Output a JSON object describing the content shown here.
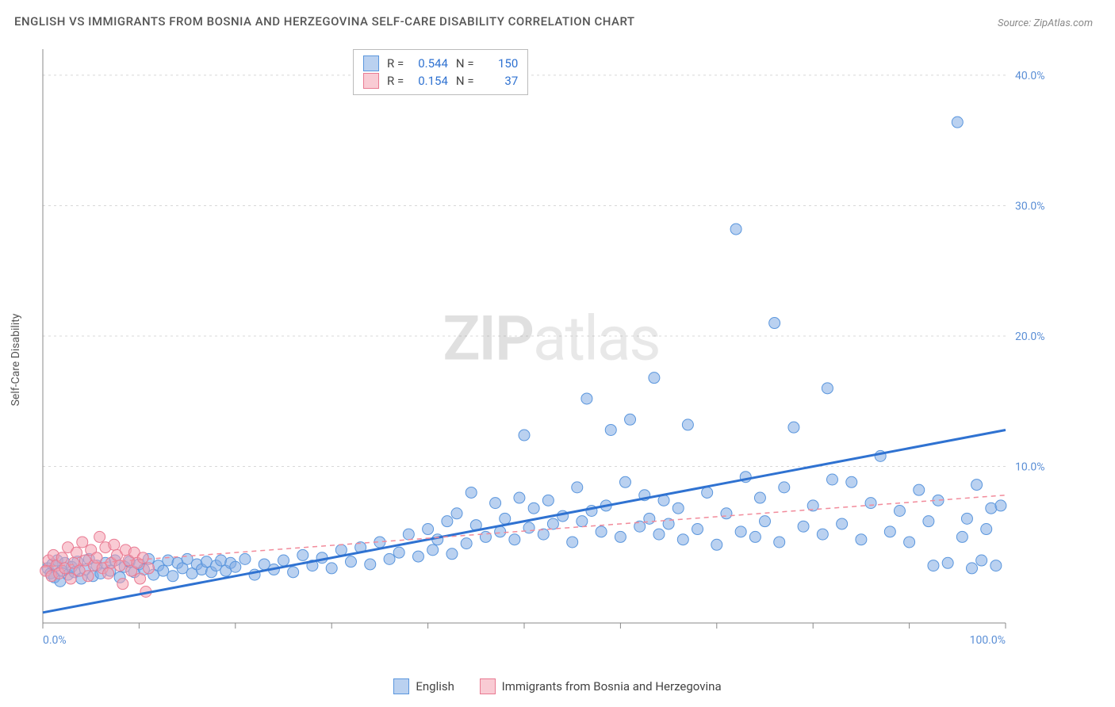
{
  "title": "ENGLISH VS IMMIGRANTS FROM BOSNIA AND HERZEGOVINA SELF-CARE DISABILITY CORRELATION CHART",
  "source_label": "Source:",
  "source_value": "ZipAtlas.com",
  "ylabel": "Self-Care Disability",
  "watermark_bold": "ZIP",
  "watermark_light": "atlas",
  "chart": {
    "type": "scatter",
    "xlim": [
      0,
      100
    ],
    "ylim": [
      -2,
      42
    ],
    "x_ticks": [
      0,
      10,
      20,
      30,
      40,
      50,
      60,
      70,
      80,
      90,
      100
    ],
    "x_tick_labels": {
      "0": "0.0%",
      "100": "100.0%"
    },
    "y_ticks": [
      10,
      20,
      30,
      40
    ],
    "y_tick_labels": {
      "10": "10.0%",
      "20": "20.0%",
      "30": "30.0%",
      "40": "40.0%"
    },
    "background_color": "#ffffff",
    "grid_color": "#d8d8d8",
    "axis_color": "#888888",
    "tick_label_color": "#5b8fd6",
    "marker_radius": 7,
    "series": [
      {
        "name": "English",
        "color_fill": "rgba(130,172,228,0.55)",
        "color_stroke": "#5a96dd",
        "R": "0.544",
        "N": "150",
        "trend": {
          "x1": 0,
          "y1": -1.2,
          "x2": 100,
          "y2": 12.8,
          "color": "#2f72d1",
          "width": 3,
          "dash": "none"
        },
        "points": [
          [
            0.5,
            2.2
          ],
          [
            0.8,
            1.8
          ],
          [
            1.0,
            2.5
          ],
          [
            1.2,
            1.5
          ],
          [
            1.5,
            2.8
          ],
          [
            1.8,
            1.2
          ],
          [
            2.0,
            2.0
          ],
          [
            2.3,
            2.6
          ],
          [
            2.6,
            1.7
          ],
          [
            3.0,
            2.3
          ],
          [
            3.3,
            1.9
          ],
          [
            3.6,
            2.7
          ],
          [
            4.0,
            1.4
          ],
          [
            4.4,
            2.1
          ],
          [
            4.8,
            2.9
          ],
          [
            5.2,
            1.6
          ],
          [
            5.6,
            2.4
          ],
          [
            6.0,
            1.8
          ],
          [
            6.5,
            2.6
          ],
          [
            7.0,
            2.0
          ],
          [
            7.5,
            2.8
          ],
          [
            8.0,
            1.5
          ],
          [
            8.5,
            2.3
          ],
          [
            9.0,
            2.7
          ],
          [
            9.5,
            1.9
          ],
          [
            10.0,
            2.5
          ],
          [
            10.5,
            2.1
          ],
          [
            11.0,
            2.9
          ],
          [
            11.5,
            1.7
          ],
          [
            12.0,
            2.4
          ],
          [
            12.5,
            2.0
          ],
          [
            13.0,
            2.8
          ],
          [
            13.5,
            1.6
          ],
          [
            14.0,
            2.6
          ],
          [
            14.5,
            2.2
          ],
          [
            15.0,
            2.9
          ],
          [
            15.5,
            1.8
          ],
          [
            16.0,
            2.5
          ],
          [
            16.5,
            2.1
          ],
          [
            17.0,
            2.7
          ],
          [
            17.5,
            1.9
          ],
          [
            18.0,
            2.4
          ],
          [
            18.5,
            2.8
          ],
          [
            19.0,
            2.0
          ],
          [
            19.5,
            2.6
          ],
          [
            20.0,
            2.3
          ],
          [
            21.0,
            2.9
          ],
          [
            22.0,
            1.7
          ],
          [
            23.0,
            2.5
          ],
          [
            24.0,
            2.1
          ],
          [
            25.0,
            2.8
          ],
          [
            26.0,
            1.9
          ],
          [
            27.0,
            3.2
          ],
          [
            28.0,
            2.4
          ],
          [
            29.0,
            3.0
          ],
          [
            30.0,
            2.2
          ],
          [
            31.0,
            3.6
          ],
          [
            32.0,
            2.7
          ],
          [
            33.0,
            3.8
          ],
          [
            34.0,
            2.5
          ],
          [
            35.0,
            4.2
          ],
          [
            36.0,
            2.9
          ],
          [
            37.0,
            3.4
          ],
          [
            38.0,
            4.8
          ],
          [
            39.0,
            3.1
          ],
          [
            40.0,
            5.2
          ],
          [
            40.5,
            3.6
          ],
          [
            41.0,
            4.4
          ],
          [
            42.0,
            5.8
          ],
          [
            42.5,
            3.3
          ],
          [
            43.0,
            6.4
          ],
          [
            44.0,
            4.1
          ],
          [
            44.5,
            8.0
          ],
          [
            45.0,
            5.5
          ],
          [
            46.0,
            4.6
          ],
          [
            47.0,
            7.2
          ],
          [
            47.5,
            5.0
          ],
          [
            48.0,
            6.0
          ],
          [
            49.0,
            4.4
          ],
          [
            49.5,
            7.6
          ],
          [
            50.0,
            12.4
          ],
          [
            50.5,
            5.3
          ],
          [
            51.0,
            6.8
          ],
          [
            52.0,
            4.8
          ],
          [
            52.5,
            7.4
          ],
          [
            53.0,
            5.6
          ],
          [
            54.0,
            6.2
          ],
          [
            55.0,
            4.2
          ],
          [
            55.5,
            8.4
          ],
          [
            56.0,
            5.8
          ],
          [
            56.5,
            15.2
          ],
          [
            57.0,
            6.6
          ],
          [
            58.0,
            5.0
          ],
          [
            58.5,
            7.0
          ],
          [
            59.0,
            12.8
          ],
          [
            60.0,
            4.6
          ],
          [
            60.5,
            8.8
          ],
          [
            61.0,
            13.6
          ],
          [
            62.0,
            5.4
          ],
          [
            62.5,
            7.8
          ],
          [
            63.0,
            6.0
          ],
          [
            63.5,
            16.8
          ],
          [
            64.0,
            4.8
          ],
          [
            64.5,
            7.4
          ],
          [
            65.0,
            5.6
          ],
          [
            66.0,
            6.8
          ],
          [
            66.5,
            4.4
          ],
          [
            67.0,
            13.2
          ],
          [
            68.0,
            5.2
          ],
          [
            69.0,
            8.0
          ],
          [
            70.0,
            4.0
          ],
          [
            71.0,
            6.4
          ],
          [
            72.0,
            28.2
          ],
          [
            72.5,
            5.0
          ],
          [
            73.0,
            9.2
          ],
          [
            74.0,
            4.6
          ],
          [
            74.5,
            7.6
          ],
          [
            75.0,
            5.8
          ],
          [
            76.0,
            21.0
          ],
          [
            76.5,
            4.2
          ],
          [
            77.0,
            8.4
          ],
          [
            78.0,
            13.0
          ],
          [
            79.0,
            5.4
          ],
          [
            80.0,
            7.0
          ],
          [
            81.0,
            4.8
          ],
          [
            81.5,
            16.0
          ],
          [
            82.0,
            9.0
          ],
          [
            83.0,
            5.6
          ],
          [
            84.0,
            8.8
          ],
          [
            85.0,
            4.4
          ],
          [
            86.0,
            7.2
          ],
          [
            87.0,
            10.8
          ],
          [
            88.0,
            5.0
          ],
          [
            89.0,
            6.6
          ],
          [
            90.0,
            4.2
          ],
          [
            91.0,
            8.2
          ],
          [
            92.0,
            5.8
          ],
          [
            92.5,
            2.4
          ],
          [
            93.0,
            7.4
          ],
          [
            94.0,
            2.6
          ],
          [
            95.0,
            36.4
          ],
          [
            95.5,
            4.6
          ],
          [
            96.0,
            6.0
          ],
          [
            96.5,
            2.2
          ],
          [
            97.0,
            8.6
          ],
          [
            97.5,
            2.8
          ],
          [
            98.0,
            5.2
          ],
          [
            98.5,
            6.8
          ],
          [
            99.0,
            2.4
          ],
          [
            99.5,
            7.0
          ]
        ]
      },
      {
        "name": "Immigrants from Bosnia and Herzegovina",
        "color_fill": "rgba(244,160,177,0.55)",
        "color_stroke": "#e97a92",
        "R": "0.154",
        "N": "37",
        "trend": {
          "x1": 0,
          "y1": 2.3,
          "x2": 100,
          "y2": 7.8,
          "color": "#f28b9b",
          "width": 1.5,
          "dash": "6 5"
        },
        "points": [
          [
            0.3,
            2.0
          ],
          [
            0.6,
            2.8
          ],
          [
            0.9,
            1.6
          ],
          [
            1.1,
            3.2
          ],
          [
            1.4,
            2.4
          ],
          [
            1.7,
            1.8
          ],
          [
            2.0,
            3.0
          ],
          [
            2.3,
            2.2
          ],
          [
            2.6,
            3.8
          ],
          [
            2.9,
            1.4
          ],
          [
            3.2,
            2.6
          ],
          [
            3.5,
            3.4
          ],
          [
            3.8,
            2.0
          ],
          [
            4.1,
            4.2
          ],
          [
            4.4,
            2.8
          ],
          [
            4.7,
            1.6
          ],
          [
            5.0,
            3.6
          ],
          [
            5.3,
            2.4
          ],
          [
            5.6,
            3.0
          ],
          [
            5.9,
            4.6
          ],
          [
            6.2,
            2.2
          ],
          [
            6.5,
            3.8
          ],
          [
            6.8,
            1.8
          ],
          [
            7.1,
            2.6
          ],
          [
            7.4,
            4.0
          ],
          [
            7.7,
            3.2
          ],
          [
            8.0,
            2.4
          ],
          [
            8.3,
            1.0
          ],
          [
            8.6,
            3.6
          ],
          [
            8.9,
            2.8
          ],
          [
            9.2,
            2.0
          ],
          [
            9.5,
            3.4
          ],
          [
            9.8,
            2.6
          ],
          [
            10.1,
            1.4
          ],
          [
            10.4,
            3.0
          ],
          [
            10.7,
            0.4
          ],
          [
            11.0,
            2.2
          ]
        ]
      }
    ],
    "legend_bottom": [
      {
        "label": "English",
        "swatch": "blue"
      },
      {
        "label": "Immigrants from Bosnia and Herzegovina",
        "swatch": "pink"
      }
    ]
  }
}
